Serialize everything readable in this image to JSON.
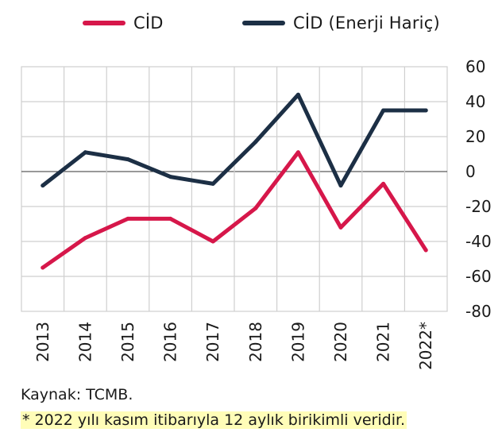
{
  "legend": {
    "series1": "CİD",
    "series2": "CİD (Enerji Hariç)"
  },
  "source": "Kaynak: TCMB.",
  "note": "* 2022 yılı kasım itibarıyla 12 aylık birikimli veridir.",
  "colors": {
    "series1": "#d6174a",
    "series2": "#1c2f45",
    "grid": "#cfcfcf",
    "zero_line": "#333333",
    "note_highlight": "#fffdb8"
  },
  "chart_data": {
    "type": "line",
    "categories": [
      "2013",
      "2014",
      "2015",
      "2016",
      "2017",
      "2018",
      "2019",
      "2020",
      "2021",
      "2022*"
    ],
    "series": [
      {
        "name": "CİD",
        "values": [
          -55,
          -38,
          -27,
          -27,
          -40,
          -21,
          11,
          -32,
          -7,
          -45
        ]
      },
      {
        "name": "CİD (Enerji Hariç)",
        "values": [
          -8,
          11,
          7,
          -3,
          -7,
          17,
          44,
          -8,
          35,
          35
        ]
      }
    ],
    "yticks": [
      60,
      40,
      20,
      0,
      -20,
      -40,
      -60,
      -80
    ],
    "ylim": [
      -80,
      60
    ],
    "y_axis_side": "right",
    "grid": true,
    "legend_position": "top",
    "xlabel": "",
    "ylabel": ""
  }
}
